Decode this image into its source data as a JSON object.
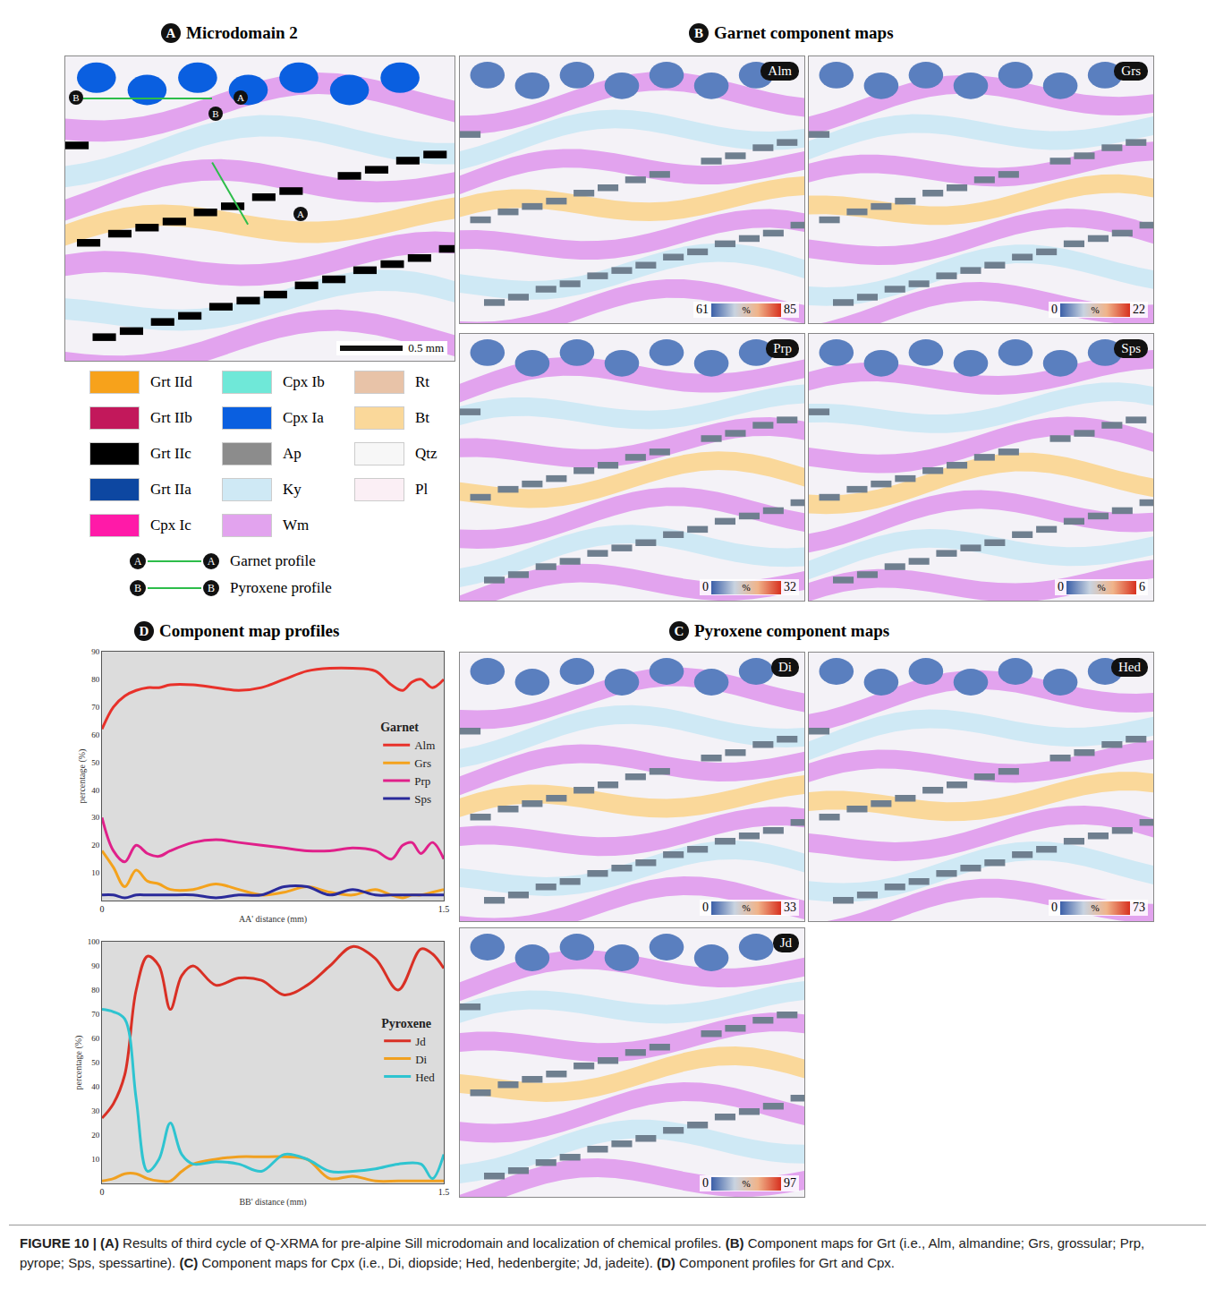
{
  "panels": {
    "A": {
      "letter": "A",
      "title": "Microdomain 2",
      "scale_bar": "0.5 mm",
      "legend": [
        [
          {
            "label": "Grt IId",
            "color": "#f7a21b"
          },
          {
            "label": "Grt IIb",
            "color": "#c2185b"
          },
          {
            "label": "Grt IIc",
            "color": "#000000"
          },
          {
            "label": "Grt IIa",
            "color": "#0d47a1"
          },
          {
            "label": "Cpx Ic",
            "color": "#ff1aa8"
          }
        ],
        [
          {
            "label": "Cpx Ib",
            "color": "#6fe8d8"
          },
          {
            "label": "Cpx Ia",
            "color": "#0a5fe0"
          },
          {
            "label": "Ap",
            "color": "#8c8c8c"
          },
          {
            "label": "Ky",
            "color": "#cfe9f5"
          },
          {
            "label": "Wm",
            "color": "#e2a3ee"
          }
        ],
        [
          {
            "label": "Rt",
            "color": "#e8c3a8"
          },
          {
            "label": "Bt",
            "color": "#fad89a"
          },
          {
            "label": "Qtz",
            "color": "#f7f7f7"
          },
          {
            "label": "Pl",
            "color": "#fbeff5"
          }
        ]
      ],
      "profiles": [
        {
          "start": "A",
          "end": "A",
          "name": "Garnet profile"
        },
        {
          "start": "B",
          "end": "B",
          "name": "Pyroxene profile"
        }
      ]
    },
    "B": {
      "letter": "B",
      "title": "Garnet component maps",
      "maps": [
        {
          "label": "Alm",
          "min": 61,
          "max": 85,
          "unit": "%"
        },
        {
          "label": "Grs",
          "min": 0,
          "max": 22,
          "unit": "%"
        },
        {
          "label": "Prp",
          "min": 0,
          "max": 32,
          "unit": "%"
        },
        {
          "label": "Sps",
          "min": 0,
          "max": 6,
          "unit": "%"
        }
      ]
    },
    "C": {
      "letter": "C",
      "title": "Pyroxene component maps",
      "maps": [
        {
          "label": "Di",
          "min": 0,
          "max": 33,
          "unit": "%"
        },
        {
          "label": "Hed",
          "min": 0,
          "max": 73,
          "unit": "%"
        },
        {
          "label": "Jd",
          "min": 0,
          "max": 97,
          "unit": "%"
        }
      ]
    },
    "D": {
      "letter": "D",
      "title": "Component map profiles"
    }
  },
  "chart_data": [
    {
      "type": "line",
      "x_label": "AA' distance (mm)",
      "y_label": "percentage (%)",
      "legend_title": "Garnet",
      "legend": "right",
      "grid": false,
      "xlim": [
        0,
        1.5
      ],
      "xticks": [
        0,
        1.5
      ],
      "ylim": [
        0,
        90
      ],
      "yticks": [
        10,
        20,
        30,
        40,
        50,
        60,
        70,
        80,
        90
      ],
      "x": [
        0,
        0.05,
        0.1,
        0.15,
        0.2,
        0.25,
        0.3,
        0.4,
        0.5,
        0.6,
        0.7,
        0.8,
        0.9,
        1.0,
        1.1,
        1.2,
        1.27,
        1.32,
        1.36,
        1.4,
        1.45,
        1.5
      ],
      "series": [
        {
          "name": "Alm",
          "color": "#e8312a",
          "values": [
            62,
            70,
            74,
            76,
            77,
            77,
            78,
            78,
            77,
            76,
            77,
            80,
            83,
            84,
            84,
            83,
            78,
            76,
            79,
            80,
            77,
            80
          ]
        },
        {
          "name": "Grs",
          "color": "#f4a21c",
          "values": [
            18,
            12,
            5,
            11,
            7,
            6,
            4,
            4,
            6,
            4,
            2,
            3,
            5,
            3,
            2,
            4,
            2,
            1,
            2,
            2,
            3,
            4
          ]
        },
        {
          "name": "Prp",
          "color": "#e0208a",
          "values": [
            30,
            18,
            14,
            20,
            17,
            16,
            18,
            21,
            22,
            21,
            20,
            19,
            18,
            18,
            19,
            18,
            15,
            20,
            21,
            17,
            21,
            15
          ]
        },
        {
          "name": "Sps",
          "color": "#2a2a9a",
          "values": [
            2,
            2,
            1,
            2,
            2,
            2,
            2,
            2,
            1,
            2,
            2,
            5,
            5,
            2,
            4,
            2,
            2,
            2,
            2,
            2,
            2,
            2
          ]
        }
      ]
    },
    {
      "type": "line",
      "x_label": "BB' distance (mm)",
      "y_label": "percentage (%)",
      "legend_title": "Pyroxene",
      "legend": "right",
      "grid": false,
      "xlim": [
        0,
        1.5
      ],
      "xticks": [
        0,
        1.5
      ],
      "ylim": [
        0,
        100
      ],
      "yticks": [
        10,
        20,
        30,
        40,
        50,
        60,
        70,
        80,
        90,
        100
      ],
      "x": [
        0,
        0.05,
        0.1,
        0.15,
        0.2,
        0.25,
        0.3,
        0.35,
        0.4,
        0.5,
        0.6,
        0.7,
        0.8,
        0.9,
        1.0,
        1.1,
        1.2,
        1.3,
        1.4,
        1.45,
        1.5
      ],
      "series": [
        {
          "name": "Jd",
          "color": "#d93025",
          "values": [
            27,
            33,
            45,
            80,
            94,
            90,
            72,
            86,
            90,
            82,
            85,
            84,
            78,
            82,
            90,
            98,
            93,
            80,
            97,
            95,
            89
          ]
        },
        {
          "name": "Di",
          "color": "#f0a020",
          "values": [
            1,
            2,
            4,
            4,
            2,
            1,
            1,
            5,
            8,
            10,
            11,
            11,
            11,
            10,
            2,
            3,
            1,
            1,
            1,
            1,
            1
          ]
        },
        {
          "name": "Hed",
          "color": "#2ec4d0",
          "values": [
            72,
            71,
            68,
            35,
            5,
            10,
            25,
            12,
            8,
            9,
            8,
            5,
            12,
            10,
            5,
            5,
            6,
            8,
            8,
            2,
            12
          ]
        }
      ]
    }
  ],
  "caption": {
    "label": "FIGURE 10 |",
    "parts": [
      {
        "tag": "(A)",
        "text": "Results of third cycle of Q-XRMA for pre-alpine Sill microdomain and localization of chemical profiles."
      },
      {
        "tag": "(B)",
        "text": "Component maps for Grt (i.e., Alm, almandine; Grs, grossular; Prp, pyrope; Sps, spessartine)."
      },
      {
        "tag": "(C)",
        "text": "Component maps for Cpx (i.e., Di, diopside; Hed, hedenbergite; Jd, jadeite)."
      },
      {
        "tag": "(D)",
        "text": "Component profiles for Grt and Cpx."
      }
    ]
  }
}
